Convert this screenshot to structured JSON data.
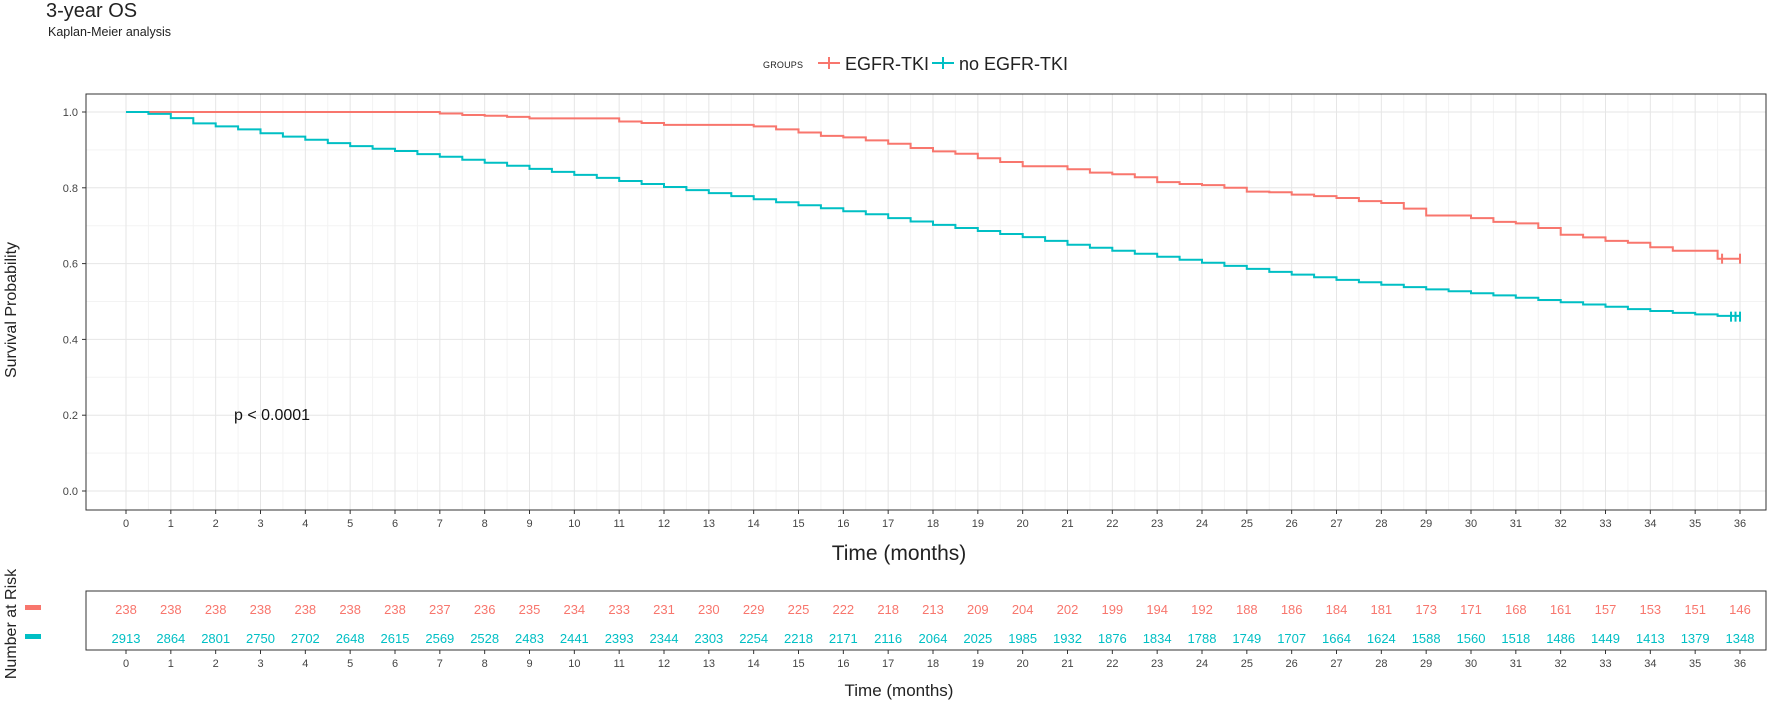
{
  "chart_data": {
    "type": "line",
    "chart_kind": "kaplan-meier",
    "title": "3-year OS",
    "subtitle": "Kaplan-Meier analysis",
    "legend": {
      "title": "GROUPS",
      "position": "top"
    },
    "xlabel": "Time (months)",
    "ylabel": "Survival Probability",
    "xlim": [
      0,
      36
    ],
    "ylim": [
      0,
      1
    ],
    "x_ticks": [
      0,
      1,
      2,
      3,
      4,
      5,
      6,
      7,
      8,
      9,
      10,
      11,
      12,
      13,
      14,
      15,
      16,
      17,
      18,
      19,
      20,
      21,
      22,
      23,
      24,
      25,
      26,
      27,
      28,
      29,
      30,
      31,
      32,
      33,
      34,
      35,
      36
    ],
    "y_ticks": [
      0.0,
      0.2,
      0.4,
      0.6,
      0.8,
      1.0
    ],
    "y_tick_labels": [
      "0.0",
      "0.2",
      "0.4",
      "0.6",
      "0.8",
      "1.0"
    ],
    "grid": true,
    "annotation": "p < 0.0001",
    "series": [
      {
        "name": "EGFR-TKI",
        "color": "#F8766D",
        "step": true,
        "x": [
          0,
          1,
          2,
          3,
          4,
          5,
          6,
          6.5,
          7,
          7.5,
          8,
          8.5,
          9,
          10,
          10.9,
          11,
          11.5,
          12,
          13,
          13.5,
          14,
          14.5,
          15,
          15.5,
          16,
          16.5,
          17,
          17.5,
          18,
          18.5,
          19,
          19.5,
          20,
          20.5,
          21,
          21.5,
          22,
          22.5,
          23,
          23.5,
          24,
          24.5,
          25,
          25.5,
          26,
          26.5,
          27,
          27.5,
          28,
          28.5,
          29,
          29.5,
          30,
          30.5,
          31,
          31.5,
          32,
          32.5,
          33,
          33.5,
          34,
          34.5,
          35,
          35.5,
          36
        ],
        "y": [
          1.0,
          1.0,
          1.0,
          1.0,
          1.0,
          1.0,
          1.0,
          1.0,
          0.996,
          0.992,
          0.99,
          0.987,
          0.983,
          0.983,
          0.983,
          0.975,
          0.971,
          0.966,
          0.966,
          0.966,
          0.962,
          0.954,
          0.946,
          0.937,
          0.933,
          0.925,
          0.916,
          0.905,
          0.896,
          0.89,
          0.878,
          0.868,
          0.857,
          0.857,
          0.849,
          0.84,
          0.836,
          0.828,
          0.815,
          0.81,
          0.807,
          0.8,
          0.79,
          0.788,
          0.782,
          0.778,
          0.773,
          0.765,
          0.76,
          0.745,
          0.727,
          0.727,
          0.72,
          0.71,
          0.706,
          0.694,
          0.676,
          0.669,
          0.66,
          0.655,
          0.643,
          0.634,
          0.634,
          0.613,
          0.613
        ],
        "censored_x": [
          35.6,
          36
        ]
      },
      {
        "name": "no EGFR-TKI",
        "color": "#00BFC4",
        "step": true,
        "x": [
          0,
          0.5,
          1,
          1.5,
          2,
          2.5,
          3,
          3.5,
          4,
          4.5,
          5,
          5.5,
          6,
          6.5,
          7,
          7.5,
          8,
          8.5,
          9,
          9.5,
          10,
          10.5,
          11,
          11.5,
          12,
          12.5,
          13,
          13.5,
          14,
          14.5,
          15,
          15.5,
          16,
          16.5,
          17,
          17.5,
          18,
          18.5,
          19,
          19.5,
          20,
          20.5,
          21,
          21.5,
          22,
          22.5,
          23,
          23.5,
          24,
          24.5,
          25,
          25.5,
          26,
          26.5,
          27,
          27.5,
          28,
          28.5,
          29,
          29.5,
          30,
          30.5,
          31,
          31.5,
          32,
          32.5,
          33,
          33.5,
          34,
          34.5,
          35,
          35.5,
          36
        ],
        "y": [
          1.0,
          0.995,
          0.984,
          0.97,
          0.962,
          0.954,
          0.944,
          0.935,
          0.927,
          0.918,
          0.91,
          0.903,
          0.897,
          0.889,
          0.882,
          0.874,
          0.866,
          0.858,
          0.85,
          0.842,
          0.834,
          0.826,
          0.818,
          0.81,
          0.802,
          0.794,
          0.786,
          0.778,
          0.77,
          0.762,
          0.754,
          0.746,
          0.738,
          0.73,
          0.72,
          0.711,
          0.702,
          0.694,
          0.686,
          0.678,
          0.67,
          0.66,
          0.65,
          0.642,
          0.634,
          0.626,
          0.618,
          0.61,
          0.602,
          0.594,
          0.586,
          0.578,
          0.571,
          0.564,
          0.557,
          0.551,
          0.544,
          0.538,
          0.532,
          0.527,
          0.522,
          0.516,
          0.51,
          0.504,
          0.498,
          0.492,
          0.486,
          0.48,
          0.475,
          0.47,
          0.466,
          0.462,
          0.46
        ],
        "censored_x": [
          35.8,
          35.9,
          36
        ]
      }
    ],
    "risk_table": {
      "title": "Number at Risk",
      "xlabel": "Time (months)",
      "rows": [
        {
          "group": "EGFR-TKI",
          "color": "#F8766D",
          "values": [
            238,
            238,
            238,
            238,
            238,
            238,
            238,
            237,
            236,
            235,
            234,
            233,
            231,
            230,
            229,
            225,
            222,
            218,
            213,
            209,
            204,
            202,
            199,
            194,
            192,
            188,
            186,
            184,
            181,
            173,
            171,
            168,
            161,
            157,
            153,
            151,
            146
          ]
        },
        {
          "group": "no EGFR-TKI",
          "color": "#00BFC4",
          "values": [
            2913,
            2864,
            2801,
            2750,
            2702,
            2648,
            2615,
            2569,
            2528,
            2483,
            2441,
            2393,
            2344,
            2303,
            2254,
            2218,
            2171,
            2116,
            2064,
            2025,
            1985,
            1932,
            1876,
            1834,
            1788,
            1749,
            1707,
            1664,
            1624,
            1588,
            1560,
            1518,
            1486,
            1449,
            1413,
            1379,
            1348
          ]
        }
      ]
    }
  }
}
